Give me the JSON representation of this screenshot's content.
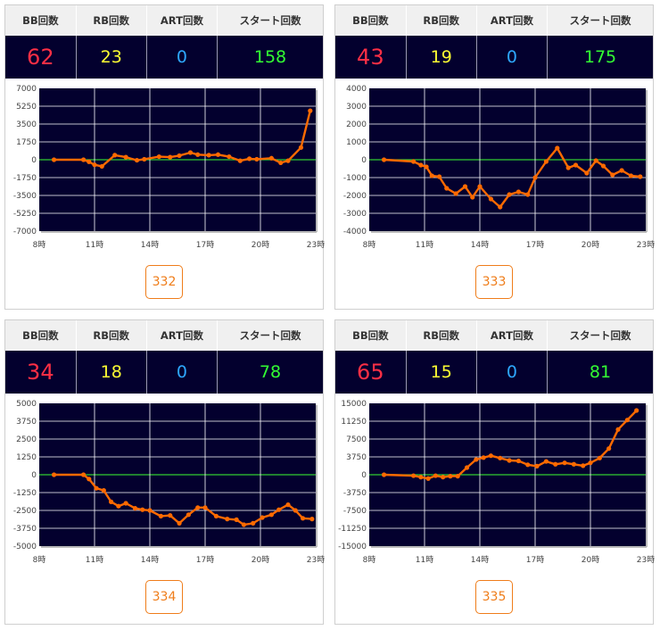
{
  "headers": {
    "bb": "BB回数",
    "rb": "RB回数",
    "art": "ART回数",
    "start": "スタート回数"
  },
  "colors": {
    "bb": "#ff2f45",
    "rb": "#ffff33",
    "art": "#2ea7ff",
    "start": "#33ff33",
    "plot_bg": "#03002e",
    "line": "#ff6a00",
    "zero_line": "#33cc33",
    "button": "#ef7d1a"
  },
  "machines": [
    {
      "machine_no": "332",
      "bb": "62",
      "rb": "23",
      "art": "0",
      "start": "158"
    },
    {
      "machine_no": "333",
      "bb": "43",
      "rb": "19",
      "art": "0",
      "start": "175"
    },
    {
      "machine_no": "334",
      "bb": "34",
      "rb": "18",
      "art": "0",
      "start": "78"
    },
    {
      "machine_no": "335",
      "bb": "65",
      "rb": "15",
      "art": "0",
      "start": "81"
    }
  ],
  "chart_data": [
    {
      "type": "line",
      "xlim": [
        8,
        23
      ],
      "x_ticks": [
        "8時",
        "11時",
        "14時",
        "17時",
        "20時",
        "23時"
      ],
      "ylim": [
        -7000,
        7000
      ],
      "y_ticks": [
        "7000",
        "5250",
        "3500",
        "1750",
        "0",
        "-1750",
        "-3500",
        "-5250",
        "-7000"
      ],
      "grid": true,
      "x": [
        8.8,
        10.4,
        10.7,
        11,
        11.4,
        12.1,
        12.7,
        13.3,
        13.7,
        14.5,
        15.1,
        15.6,
        16.2,
        16.6,
        17.2,
        17.7,
        18.3,
        18.9,
        19.4,
        19.8,
        20.6,
        21.1,
        21.5,
        22.2,
        22.7
      ],
      "y": [
        0,
        0,
        -200,
        -500,
        -650,
        450,
        250,
        -50,
        50,
        300,
        250,
        400,
        700,
        500,
        450,
        500,
        300,
        -100,
        100,
        50,
        150,
        -300,
        -100,
        1200,
        4800
      ]
    },
    {
      "type": "line",
      "xlim": [
        8,
        23
      ],
      "x_ticks": [
        "8時",
        "11時",
        "14時",
        "17時",
        "20時",
        "23時"
      ],
      "ylim": [
        -4000,
        4000
      ],
      "y_ticks": [
        "4000",
        "3000",
        "2000",
        "1000",
        "0",
        "-1000",
        "-2000",
        "-3000",
        "-4000"
      ],
      "grid": true,
      "x": [
        8.8,
        10.4,
        10.8,
        11.1,
        11.4,
        11.8,
        12.2,
        12.7,
        13.2,
        13.6,
        14,
        14.6,
        15.1,
        15.6,
        16.1,
        16.6,
        17,
        17.6,
        18.2,
        18.8,
        19.2,
        19.8,
        20.3,
        20.7,
        21.2,
        21.7,
        22.2,
        22.7
      ],
      "y": [
        0,
        -100,
        -300,
        -400,
        -900,
        -950,
        -1600,
        -1900,
        -1500,
        -2100,
        -1500,
        -2200,
        -2650,
        -1950,
        -1800,
        -1950,
        -1000,
        -100,
        650,
        -450,
        -300,
        -750,
        -50,
        -350,
        -850,
        -600,
        -900,
        -950
      ]
    },
    {
      "type": "line",
      "xlim": [
        8,
        23
      ],
      "x_ticks": [
        "8時",
        "11時",
        "14時",
        "17時",
        "20時",
        "23時"
      ],
      "ylim": [
        -5000,
        5000
      ],
      "y_ticks": [
        "5000",
        "3750",
        "2500",
        "1250",
        "0",
        "-1250",
        "-2500",
        "-3750",
        "-5000"
      ],
      "grid": true,
      "x": [
        8.8,
        10.4,
        10.7,
        11.1,
        11.5,
        11.9,
        12.3,
        12.7,
        13.2,
        13.6,
        14,
        14.6,
        15.1,
        15.6,
        16.1,
        16.6,
        17,
        17.6,
        18.2,
        18.7,
        19.1,
        19.6,
        20.1,
        20.6,
        21,
        21.5,
        21.9,
        22.3,
        22.8
      ],
      "y": [
        0,
        0,
        -300,
        -950,
        -1100,
        -1900,
        -2200,
        -2000,
        -2350,
        -2450,
        -2500,
        -2900,
        -2850,
        -3400,
        -2800,
        -2300,
        -2300,
        -2900,
        -3100,
        -3150,
        -3500,
        -3400,
        -3000,
        -2800,
        -2450,
        -2100,
        -2500,
        -3050,
        -3100
      ]
    },
    {
      "type": "line",
      "xlim": [
        8,
        23
      ],
      "x_ticks": [
        "8時",
        "11時",
        "14時",
        "17時",
        "20時",
        "23時"
      ],
      "ylim": [
        -15000,
        15000
      ],
      "y_ticks": [
        "15000",
        "11250",
        "7500",
        "3750",
        "0",
        "-3750",
        "-7500",
        "-11250",
        "-15000"
      ],
      "grid": true,
      "x": [
        8.8,
        10.4,
        10.8,
        11.2,
        11.6,
        12,
        12.4,
        12.8,
        13.3,
        13.8,
        14.2,
        14.6,
        15.1,
        15.6,
        16.1,
        16.6,
        17.1,
        17.6,
        18.1,
        18.6,
        19.1,
        19.6,
        20,
        20.5,
        21,
        21.5,
        22,
        22.5
      ],
      "y": [
        0,
        -200,
        -500,
        -800,
        -200,
        -500,
        -300,
        -300,
        1500,
        3200,
        3600,
        4000,
        3500,
        3000,
        2900,
        2100,
        1800,
        2800,
        2200,
        2500,
        2200,
        1900,
        2500,
        3500,
        5500,
        9500,
        11500,
        13500
      ]
    }
  ]
}
